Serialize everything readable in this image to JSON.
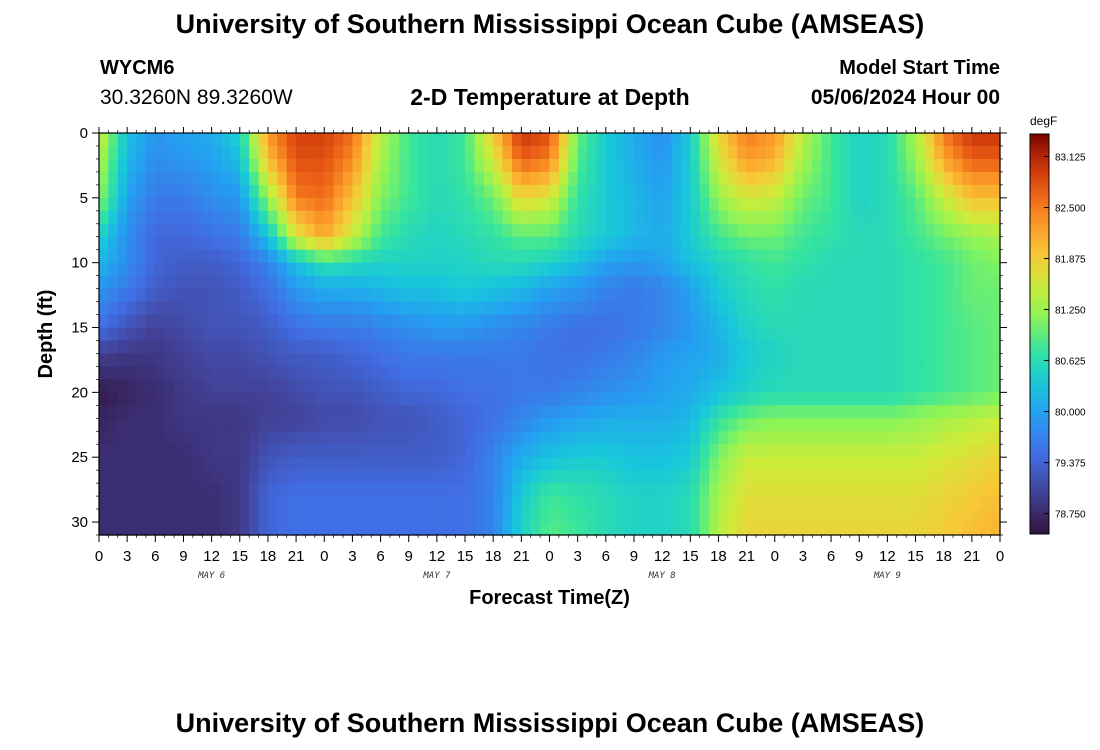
{
  "header": {
    "title": "University of Southern Mississippi Ocean Cube (AMSEAS)",
    "station_id": "WYCM6",
    "coordinates": "30.3260N  89.3260W",
    "chart_title": "2-D Temperature at Depth",
    "model_start_label": "Model Start Time",
    "model_start_value": "05/06/2024 Hour 00"
  },
  "footer": {
    "title": "University of Southern Mississippi Ocean Cube (AMSEAS)"
  },
  "chart_data": {
    "type": "heatmap",
    "title": "2-D Temperature at Depth",
    "xlabel": "Forecast Time(Z)",
    "ylabel": "Depth (ft)",
    "xlim": [
      0,
      96
    ],
    "ylim": [
      0,
      31
    ],
    "y_inverted": true,
    "x_tick_step_hours": 3,
    "x_tick_labels": [
      "0",
      "3",
      "6",
      "9",
      "12",
      "15",
      "18",
      "21",
      "0",
      "3",
      "6",
      "9",
      "12",
      "15",
      "18",
      "21",
      "0",
      "3",
      "6",
      "9",
      "12",
      "15",
      "18",
      "21",
      "0",
      "3",
      "6",
      "9",
      "12",
      "15",
      "18",
      "21",
      "0"
    ],
    "y_ticks": [
      0,
      5,
      10,
      15,
      20,
      25,
      30
    ],
    "date_labels": [
      {
        "label": "MAY 6",
        "hour": 12
      },
      {
        "label": "MAY 7",
        "hour": 36
      },
      {
        "label": "MAY 8",
        "hour": 60
      },
      {
        "label": "MAY 9",
        "hour": 84
      }
    ],
    "colorbar": {
      "unit": "degF",
      "min": 78.5,
      "max": 83.4,
      "ticks": [
        "83.125",
        "82.500",
        "81.875",
        "81.250",
        "80.625",
        "80.000",
        "79.375",
        "78.750"
      ]
    },
    "depths_ft": [
      0,
      2,
      5,
      8,
      10,
      12,
      15,
      17,
      20,
      22,
      25,
      28,
      31
    ],
    "times_h": [
      0,
      3,
      6,
      9,
      12,
      15,
      18,
      21,
      24,
      27,
      30,
      33,
      36,
      39,
      42,
      45,
      48,
      51,
      54,
      57,
      60,
      63,
      66,
      69,
      72,
      75,
      78,
      81,
      84,
      87,
      90,
      93,
      96
    ],
    "temperatures_degF": [
      [
        81.6,
        80.3,
        79.9,
        80.0,
        80.1,
        80.5,
        82.3,
        82.9,
        82.9,
        82.6,
        81.4,
        80.8,
        80.6,
        80.8,
        81.9,
        83.0,
        82.8,
        81.0,
        80.4,
        80.1,
        79.8,
        80.4,
        81.8,
        82.5,
        82.3,
        81.4,
        80.8,
        80.5,
        80.6,
        81.3,
        82.5,
        83.0,
        83.0
      ],
      [
        81.4,
        80.2,
        79.8,
        79.9,
        80.0,
        80.3,
        82.0,
        82.8,
        82.8,
        82.4,
        81.3,
        80.8,
        80.6,
        80.8,
        81.6,
        82.7,
        82.5,
        80.9,
        80.4,
        80.1,
        79.9,
        80.4,
        81.6,
        82.3,
        82.1,
        81.3,
        80.8,
        80.5,
        80.6,
        81.2,
        82.2,
        82.7,
        82.7
      ],
      [
        81.2,
        80.0,
        79.6,
        79.6,
        79.8,
        79.9,
        81.2,
        82.5,
        82.6,
        82.0,
        81.1,
        80.8,
        80.6,
        80.7,
        81.0,
        81.8,
        81.6,
        80.7,
        80.4,
        80.2,
        80.0,
        80.4,
        81.2,
        81.6,
        81.5,
        81.0,
        80.8,
        80.5,
        80.6,
        80.9,
        81.5,
        82.0,
        82.0
      ],
      [
        80.5,
        79.8,
        79.4,
        79.4,
        79.5,
        79.6,
        80.3,
        81.6,
        82.2,
        81.5,
        80.8,
        80.6,
        80.5,
        80.6,
        80.7,
        80.9,
        80.9,
        80.6,
        80.4,
        80.2,
        80.1,
        80.4,
        80.8,
        81.0,
        81.0,
        80.8,
        80.7,
        80.6,
        80.6,
        80.8,
        81.0,
        81.2,
        81.3
      ],
      [
        80.2,
        79.8,
        79.4,
        79.3,
        79.3,
        79.4,
        79.7,
        80.3,
        80.7,
        80.6,
        80.5,
        80.5,
        80.5,
        80.5,
        80.6,
        80.6,
        80.5,
        80.3,
        80.0,
        79.9,
        80.0,
        80.3,
        80.5,
        80.7,
        80.8,
        80.7,
        80.6,
        80.6,
        80.6,
        80.7,
        80.8,
        81.0,
        81.1
      ],
      [
        79.9,
        79.6,
        79.3,
        79.2,
        79.2,
        79.3,
        79.5,
        79.9,
        80.1,
        80.1,
        80.2,
        80.3,
        80.3,
        80.4,
        80.3,
        80.2,
        80.0,
        79.9,
        79.7,
        79.6,
        79.7,
        80.0,
        80.4,
        80.6,
        80.7,
        80.6,
        80.6,
        80.6,
        80.6,
        80.7,
        80.8,
        81.0,
        81.0
      ],
      [
        79.5,
        79.2,
        79.0,
        79.1,
        79.2,
        79.2,
        79.3,
        79.5,
        79.6,
        79.6,
        79.7,
        79.8,
        79.9,
        79.9,
        79.8,
        79.7,
        79.6,
        79.5,
        79.5,
        79.6,
        79.7,
        79.9,
        80.2,
        80.5,
        80.6,
        80.6,
        80.6,
        80.6,
        80.6,
        80.7,
        80.8,
        80.9,
        81.0
      ],
      [
        79.0,
        78.9,
        78.9,
        79.0,
        79.1,
        79.1,
        79.2,
        79.3,
        79.3,
        79.4,
        79.5,
        79.6,
        79.6,
        79.6,
        79.6,
        79.6,
        79.5,
        79.5,
        79.6,
        79.7,
        79.9,
        80.0,
        80.1,
        80.4,
        80.5,
        80.6,
        80.6,
        80.6,
        80.6,
        80.7,
        80.8,
        80.9,
        81.0
      ],
      [
        78.6,
        78.7,
        78.8,
        78.9,
        79.0,
        79.0,
        79.0,
        79.1,
        79.2,
        79.2,
        79.3,
        79.4,
        79.4,
        79.5,
        79.5,
        79.6,
        79.6,
        79.7,
        79.8,
        79.9,
        80.0,
        80.1,
        80.3,
        80.5,
        80.6,
        80.6,
        80.6,
        80.6,
        80.6,
        80.7,
        80.8,
        80.9,
        81.0
      ],
      [
        78.7,
        78.8,
        78.8,
        78.9,
        78.9,
        78.9,
        79.0,
        79.0,
        79.1,
        79.1,
        79.2,
        79.2,
        79.3,
        79.4,
        79.5,
        79.7,
        79.9,
        80.0,
        80.1,
        80.1,
        80.1,
        80.2,
        80.7,
        81.0,
        81.1,
        81.1,
        81.1,
        81.1,
        81.1,
        81.2,
        81.3,
        81.4,
        81.5
      ],
      [
        78.8,
        78.8,
        78.8,
        78.8,
        78.9,
        78.9,
        79.2,
        79.3,
        79.3,
        79.3,
        79.3,
        79.3,
        79.3,
        79.4,
        79.7,
        80.1,
        80.3,
        80.4,
        80.4,
        80.3,
        80.3,
        80.4,
        81.1,
        81.5,
        81.5,
        81.5,
        81.5,
        81.5,
        81.5,
        81.5,
        81.6,
        81.7,
        81.8
      ],
      [
        78.8,
        78.8,
        78.8,
        78.8,
        78.8,
        78.9,
        79.4,
        79.5,
        79.5,
        79.5,
        79.5,
        79.5,
        79.5,
        79.5,
        79.7,
        80.4,
        80.8,
        80.7,
        80.6,
        80.5,
        80.5,
        80.6,
        81.3,
        81.7,
        81.7,
        81.7,
        81.7,
        81.7,
        81.7,
        81.7,
        81.8,
        81.9,
        82.0
      ],
      [
        78.8,
        78.8,
        78.8,
        78.8,
        78.8,
        78.9,
        79.4,
        79.5,
        79.5,
        79.5,
        79.5,
        79.5,
        79.5,
        79.5,
        79.7,
        80.5,
        80.9,
        80.8,
        80.6,
        80.5,
        80.5,
        80.6,
        81.4,
        81.8,
        81.8,
        81.8,
        81.8,
        81.8,
        81.8,
        81.8,
        81.9,
        82.0,
        82.1
      ]
    ]
  }
}
